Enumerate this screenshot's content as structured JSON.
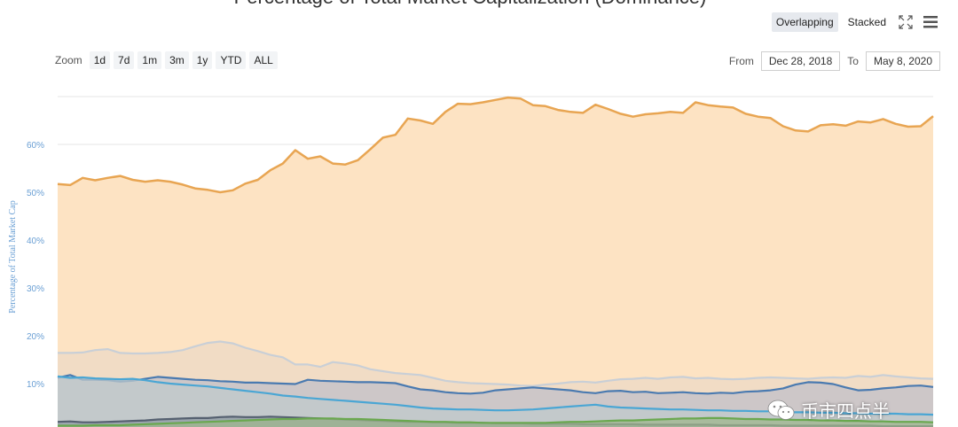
{
  "title": "Percentage of Total Market Capitalization (Dominance)",
  "toolbar": {
    "overlapping_label": "Overlapping",
    "stacked_label": "Stacked"
  },
  "zoom": {
    "label": "Zoom",
    "buttons": [
      "1d",
      "7d",
      "1m",
      "3m",
      "1y",
      "YTD",
      "ALL"
    ]
  },
  "range": {
    "from_label": "From",
    "from_value": "Dec 28, 2018",
    "to_label": "To",
    "to_value": "May 8, 2020"
  },
  "watermark": {
    "text": "币市四点半"
  },
  "chart_data": {
    "type": "area",
    "title": "Percentage of Total Market Capitalization (Dominance)",
    "ylabel": "Percentage of Total Market Cap",
    "xlabel": "",
    "yticks": [
      "10%",
      "20%",
      "30%",
      "40%",
      "50%",
      "60%"
    ],
    "ylim": [
      0,
      70
    ],
    "x_range": [
      "Dec 28, 2018",
      "May 8, 2020"
    ],
    "grid": true,
    "mode": "overlapping",
    "series": [
      {
        "color": "#e8a552",
        "fill": "#fde3c3",
        "values": [
          51.7,
          51.5,
          53.0,
          52.5,
          53.0,
          53.4,
          52.6,
          52.2,
          52.5,
          52.2,
          51.6,
          50.8,
          50.5,
          50.0,
          50.4,
          51.8,
          52.6,
          54.6,
          56.0,
          58.8,
          57.0,
          57.5,
          56.0,
          55.8,
          56.7,
          59.0,
          61.4,
          62.0,
          65.4,
          65.0,
          64.3,
          66.8,
          68.5,
          68.4,
          68.8,
          69.3,
          69.8,
          69.6,
          68.2,
          68.0,
          67.2,
          66.8,
          66.6,
          68.3,
          67.4,
          66.4,
          65.8,
          66.3,
          66.5,
          66.8,
          66.6,
          68.8,
          68.2,
          67.9,
          67.7,
          66.4,
          65.8,
          65.5,
          63.8,
          62.9,
          62.7,
          64.0,
          64.2,
          63.9,
          64.8,
          64.6,
          65.3,
          64.3,
          63.7,
          63.8,
          65.9
        ]
      },
      {
        "color": "#c9cfd6",
        "fill": "#ecd9c6",
        "values": [
          16.4,
          16.4,
          16.5,
          17.0,
          17.2,
          16.4,
          16.3,
          16.3,
          16.4,
          16.6,
          17.0,
          17.8,
          18.5,
          18.8,
          18.4,
          17.5,
          16.8,
          16.0,
          15.5,
          14.0,
          14.0,
          13.5,
          14.5,
          14.2,
          13.8,
          13.0,
          12.6,
          12.2,
          12.0,
          11.8,
          11.2,
          10.6,
          10.3,
          10.1,
          10.0,
          9.9,
          9.8,
          9.6,
          9.5,
          9.8,
          10.0,
          10.3,
          10.4,
          10.2,
          10.6,
          10.9,
          11.0,
          11.2,
          11.0,
          11.3,
          11.4,
          11.1,
          11.2,
          11.0,
          10.9,
          11.0,
          11.2,
          11.3,
          11.2,
          11.1,
          11.0,
          11.2,
          11.3,
          11.2,
          11.6,
          11.4,
          11.8,
          11.5,
          11.3,
          11.1,
          11.0
        ]
      },
      {
        "color": "#4a7ab0",
        "fill": "#c0c0c8",
        "values": [
          11.2,
          11.8,
          10.8,
          10.8,
          10.7,
          10.4,
          10.6,
          11.0,
          11.4,
          11.2,
          11.0,
          10.8,
          10.7,
          10.5,
          10.4,
          10.2,
          10.2,
          10.1,
          10.0,
          9.9,
          10.8,
          10.6,
          10.5,
          10.4,
          10.3,
          10.3,
          10.2,
          10.1,
          9.4,
          8.8,
          8.6,
          8.2,
          8.0,
          7.9,
          8.1,
          8.6,
          8.8,
          9.0,
          9.2,
          9.0,
          8.8,
          8.6,
          8.2,
          8.0,
          8.4,
          8.5,
          8.2,
          8.3,
          8.0,
          8.1,
          8.2,
          8.0,
          7.9,
          8.1,
          8.0,
          8.3,
          8.4,
          8.6,
          9.0,
          9.8,
          10.3,
          10.2,
          9.9,
          9.2,
          8.6,
          8.7,
          9.0,
          9.2,
          9.5,
          9.6,
          9.3
        ]
      },
      {
        "color": "#4aa6d4",
        "fill": "#bfc9cc",
        "values": [
          11.5,
          11.2,
          11.3,
          11.1,
          11.0,
          10.9,
          11.0,
          10.7,
          10.3,
          10.0,
          9.8,
          9.6,
          9.4,
          9.1,
          8.8,
          8.5,
          8.2,
          7.9,
          7.5,
          7.3,
          7.0,
          6.8,
          6.6,
          6.4,
          6.2,
          6.0,
          5.8,
          5.6,
          5.3,
          5.0,
          4.8,
          4.7,
          4.6,
          4.6,
          4.5,
          4.4,
          4.4,
          4.5,
          4.6,
          4.8,
          5.0,
          5.2,
          5.4,
          5.6,
          5.2,
          5.0,
          4.9,
          4.8,
          4.7,
          4.6,
          4.6,
          4.5,
          4.4,
          4.4,
          4.3,
          4.3,
          4.2,
          4.2,
          4.1,
          4.0,
          4.0,
          3.9,
          3.9,
          3.8,
          3.8,
          3.7,
          3.7,
          3.7,
          3.6,
          3.6,
          3.5
        ]
      },
      {
        "color": "#556070",
        "fill": "#8f9aa4",
        "values": [
          2.0,
          2.1,
          1.9,
          1.9,
          2.0,
          2.1,
          2.2,
          2.3,
          2.5,
          2.6,
          2.7,
          2.8,
          2.8,
          3.0,
          3.1,
          3.0,
          3.0,
          3.1,
          3.0,
          2.9,
          2.8,
          2.7,
          2.6,
          2.5,
          2.4,
          2.3,
          2.2,
          2.1,
          2.0,
          2.0,
          1.9,
          1.9,
          1.8,
          1.8,
          1.8,
          1.7,
          1.7,
          1.7,
          1.6,
          1.6,
          1.6,
          1.6,
          1.5,
          1.5,
          1.5,
          1.5,
          1.5,
          1.4,
          1.4,
          1.4,
          1.4,
          1.4,
          1.4,
          1.3,
          1.3,
          1.3,
          1.3,
          1.3,
          1.2,
          1.2,
          1.2,
          1.2,
          1.2,
          1.2,
          1.2,
          1.2,
          1.1,
          1.1,
          1.1,
          1.1,
          1.1
        ]
      },
      {
        "color": "#6aa84f",
        "fill": "#9fb58e",
        "values": [
          1.2,
          1.2,
          1.2,
          1.3,
          1.3,
          1.3,
          1.4,
          1.5,
          1.6,
          1.7,
          1.8,
          1.9,
          2.0,
          2.1,
          2.2,
          2.3,
          2.4,
          2.5,
          2.6,
          2.6,
          2.7,
          2.7,
          2.7,
          2.6,
          2.6,
          2.5,
          2.4,
          2.3,
          2.2,
          2.1,
          2.0,
          2.0,
          1.9,
          1.9,
          1.8,
          1.8,
          1.8,
          1.8,
          1.8,
          1.8,
          1.9,
          2.0,
          2.0,
          2.1,
          2.2,
          2.3,
          2.3,
          2.4,
          2.5,
          2.6,
          2.7,
          2.7,
          2.8,
          2.8,
          2.7,
          2.6,
          2.6,
          2.5,
          2.5,
          2.4,
          2.4,
          2.3,
          2.3,
          2.2,
          2.2,
          2.1,
          2.1,
          2.0,
          2.0,
          2.0,
          1.9
        ]
      }
    ]
  }
}
